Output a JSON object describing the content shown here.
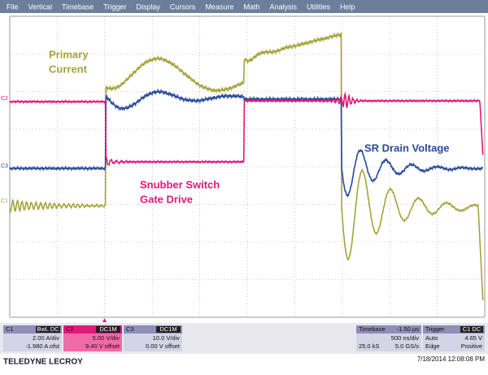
{
  "menu": [
    "File",
    "Vertical",
    "Timebase",
    "Trigger",
    "Display",
    "Cursors",
    "Measure",
    "Math",
    "Analysis",
    "Utilities",
    "Help"
  ],
  "annotations": {
    "primary_current": [
      "Primary",
      "Current"
    ],
    "sr_drain_voltage": "SR Drain Voltage",
    "snubber_gate_drive": [
      "Snubber Switch",
      "Gate Drive"
    ]
  },
  "trace_markers": [
    "C2",
    "C3",
    "C1"
  ],
  "channels": [
    {
      "name": "C1",
      "badge": "BwL DC",
      "scale": "2.00 A/div",
      "offset": "-1.980 A ofst"
    },
    {
      "name": "C2",
      "badge": "DC1M",
      "scale": "5.00 V/div",
      "offset": "9.40 V offset"
    },
    {
      "name": "C3",
      "badge": "DC1M",
      "scale": "10.0 V/div",
      "offset": "0.00 V offset"
    }
  ],
  "timebase": {
    "label": "Timebase",
    "delay": "-1.50 µs",
    "per_div": "500 ns/div",
    "samples": "25.0 kS",
    "rate": "5.0 GS/s"
  },
  "trigger": {
    "label": "Trigger",
    "badge": "C1 DC",
    "mode": "Auto",
    "level": "4.65 V",
    "type": "Edge",
    "slope": "Positive"
  },
  "footer": {
    "brand": "TELEDYNE LECROY",
    "timestamp": "7/18/2014 12:08:08 PM"
  }
}
